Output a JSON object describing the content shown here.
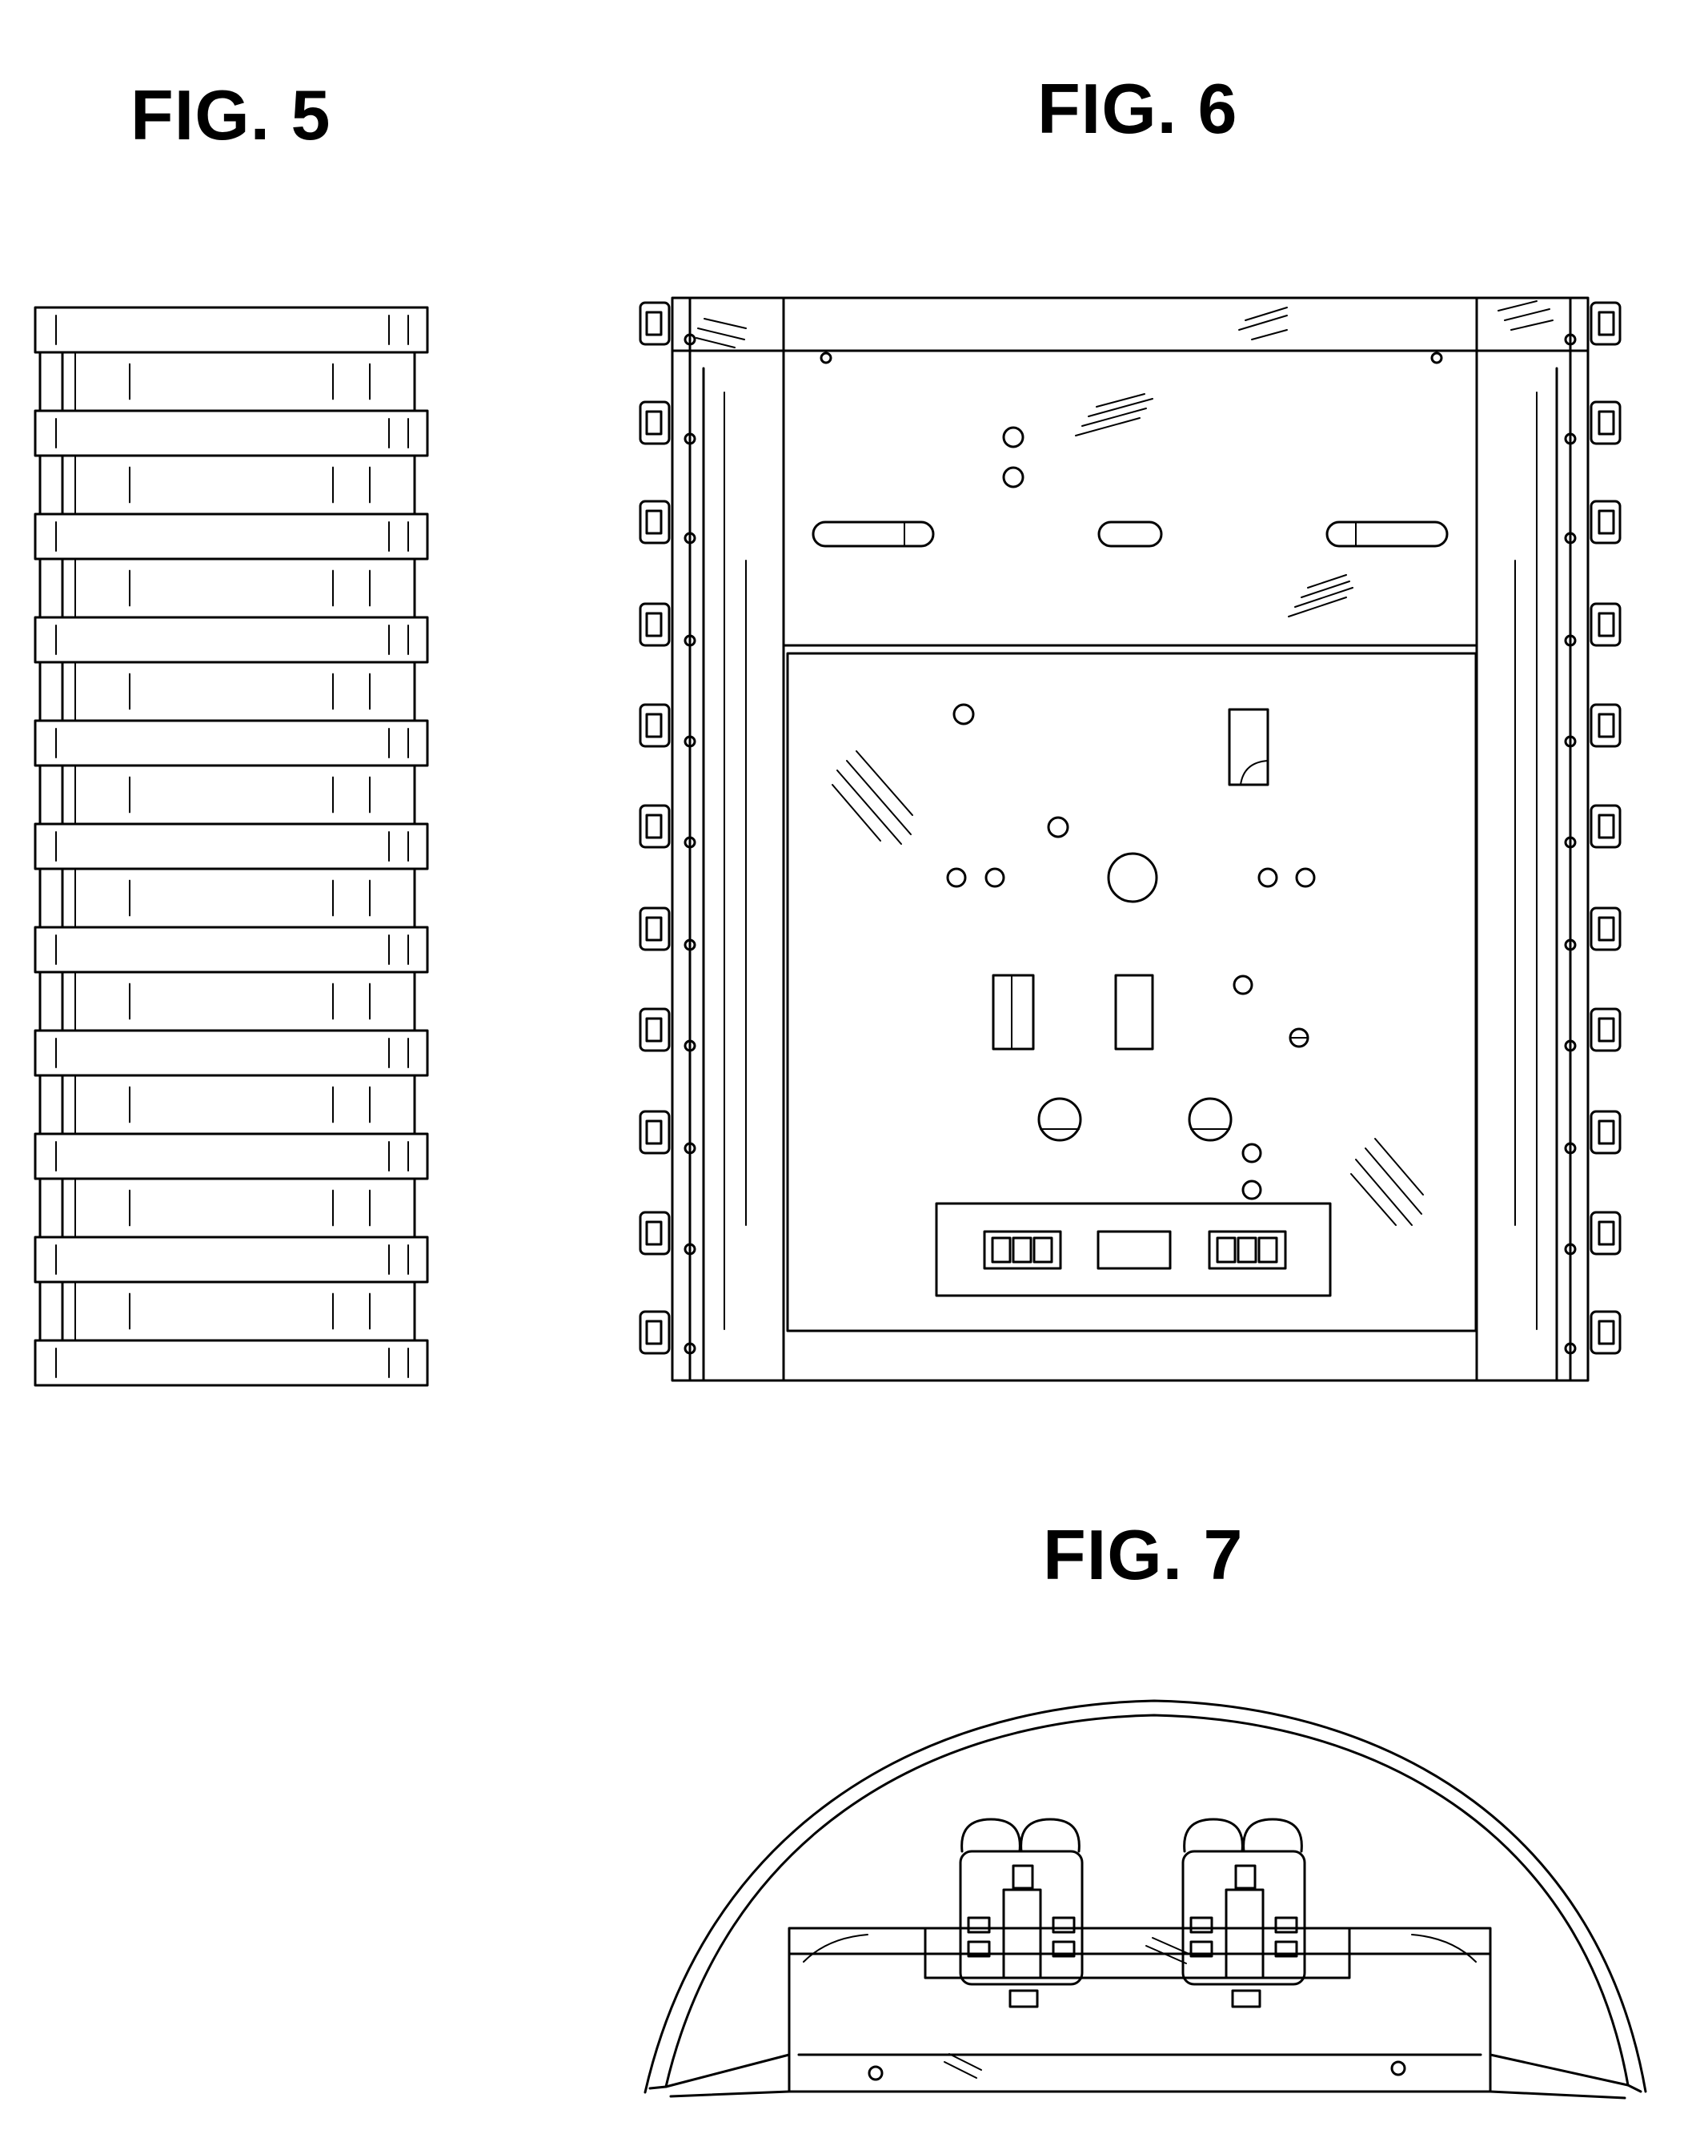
{
  "figures": [
    {
      "id": "fig5",
      "label": "FIG. 5"
    },
    {
      "id": "fig6",
      "label": "FIG. 6"
    },
    {
      "id": "fig7",
      "label": "FIG. 7"
    }
  ],
  "colors": {
    "ink": "#000000",
    "paper": "#ffffff"
  }
}
